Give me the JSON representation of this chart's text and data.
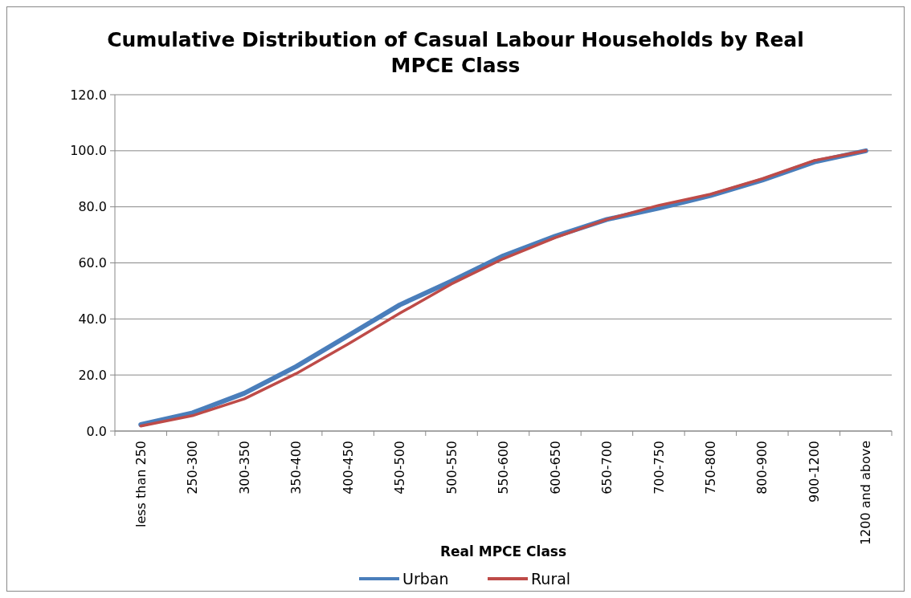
{
  "chart_data": {
    "type": "line",
    "title": "Cumulative Distribution of Casual Labour Households by Real MPCE Class",
    "xlabel": "Real MPCE Class",
    "categories": [
      "less than 250",
      "250-300",
      "300-350",
      "350-400",
      "400-450",
      "450-500",
      "500-550",
      "550-600",
      "600-650",
      "650-700",
      "700-750",
      "750-800",
      "800-900",
      "900-1200",
      "1200 and above"
    ],
    "series": [
      {
        "name": "Urban",
        "color": "#4a7ebb",
        "values": [
          2.3,
          6.5,
          13.5,
          23,
          34,
          45,
          53.5,
          62.5,
          69.5,
          75.5,
          79.5,
          84,
          89.5,
          96,
          100
        ]
      },
      {
        "name": "Rural",
        "color": "#be4b48",
        "values": [
          1.8,
          5.5,
          11.5,
          20.5,
          31,
          42,
          52.5,
          61.5,
          69,
          75.5,
          80.5,
          84.5,
          90,
          96.5,
          100
        ]
      }
    ],
    "ylim": [
      0,
      120
    ],
    "yticks": [
      {
        "value": 0,
        "label": "0.0"
      },
      {
        "value": 20,
        "label": "20.0"
      },
      {
        "value": 40,
        "label": "40.0"
      },
      {
        "value": 60,
        "label": "60.0"
      },
      {
        "value": 80,
        "label": "80.0"
      },
      {
        "value": 100,
        "label": "100.0"
      },
      {
        "value": 120,
        "label": "120.0"
      }
    ],
    "grid": "y",
    "legend": "bottom",
    "marker": "none",
    "line_style": "solid"
  }
}
